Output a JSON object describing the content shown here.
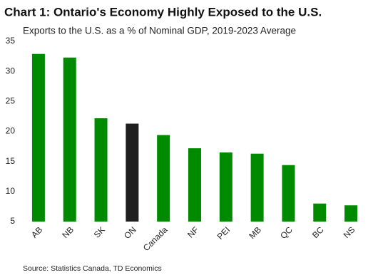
{
  "chart_data": {
    "type": "bar",
    "title": "Chart 1: Ontario's Economy Highly Exposed to the U.S.",
    "subtitle": "Exports to the U.S. as a % of Nominal GDP, 2019-2023 Average",
    "source": "Source: Statistics Canada, TD Economics",
    "categories": [
      "AB",
      "NB",
      "SK",
      "ON",
      "Canada",
      "NF",
      "PEI",
      "MB",
      "QC",
      "BC",
      "NS"
    ],
    "values": [
      32.9,
      32.3,
      22.2,
      21.3,
      19.4,
      17.2,
      16.5,
      16.3,
      14.4,
      8.0,
      7.7
    ],
    "colors": [
      "#008a00",
      "#008a00",
      "#008a00",
      "#1f1f1f",
      "#008a00",
      "#008a00",
      "#008a00",
      "#008a00",
      "#008a00",
      "#008a00",
      "#008a00"
    ],
    "ylim": [
      5,
      35
    ],
    "yticks": [
      5,
      10,
      15,
      20,
      25,
      30,
      35
    ],
    "grid": false
  }
}
